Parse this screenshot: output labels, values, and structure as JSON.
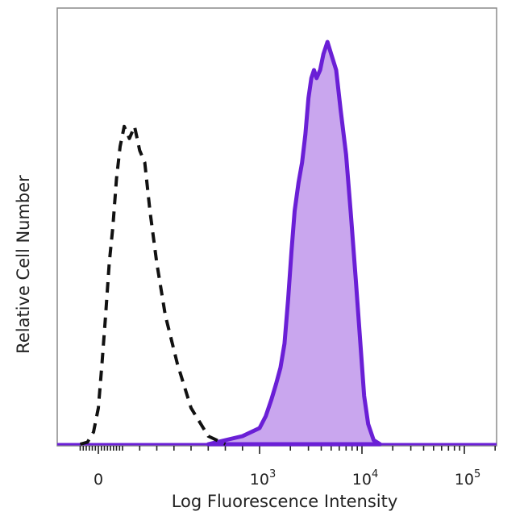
{
  "chart_data": {
    "type": "area",
    "title": "",
    "xlabel": "Log Fluorescence Intensity",
    "ylabel": "Relative Cell Number",
    "x_scale": "biexponential",
    "x_ticks": [
      {
        "base": "0",
        "sup": ""
      },
      {
        "base": "10",
        "sup": "3"
      },
      {
        "base": "10",
        "sup": "4"
      },
      {
        "base": "10",
        "sup": "5"
      }
    ],
    "y_ticks": [],
    "legend": "none",
    "grid": false,
    "colors": {
      "stained_fill": "#c9a6ee",
      "stained_line": "#6a1fd6",
      "control_line": "#111111",
      "frame": "#8a8a8a"
    },
    "series": [
      {
        "style": "dashed-outline",
        "x": [
          -150,
          -90,
          -40,
          0,
          30,
          60,
          90,
          120,
          150,
          180,
          210,
          240,
          270,
          300,
          330,
          360,
          400,
          450,
          520,
          600,
          700,
          800
        ],
        "y": [
          0,
          0.5,
          3,
          9,
          20,
          32,
          45,
          54,
          66,
          74,
          79,
          76,
          79,
          73,
          70,
          58,
          45,
          32,
          20,
          9,
          2,
          0
        ]
      },
      {
        "style": "filled",
        "x": [
          700,
          800,
          900,
          1000,
          1150,
          1300,
          1450,
          1600,
          1750,
          1900,
          2050,
          2200,
          2400,
          2600,
          2800,
          3000,
          3200,
          3400,
          3600,
          3900,
          4200,
          4600,
          5000,
          5600,
          6200,
          7000,
          7800,
          8700,
          9600,
          10500,
          11500,
          13000,
          15000
        ],
        "y": [
          0,
          1,
          2,
          4,
          7,
          11,
          15,
          19,
          25,
          36,
          48,
          58,
          65,
          70,
          77,
          86,
          91,
          93,
          91,
          93,
          97,
          100,
          97,
          93,
          83,
          72,
          57,
          41,
          26,
          12,
          5,
          1,
          0
        ]
      }
    ]
  }
}
